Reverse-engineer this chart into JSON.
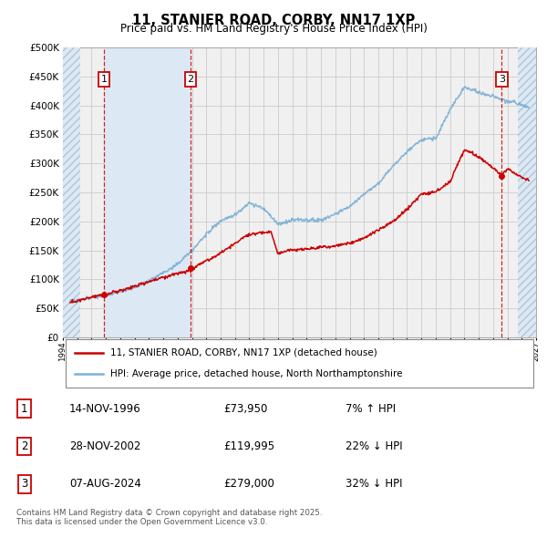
{
  "title": "11, STANIER ROAD, CORBY, NN17 1XP",
  "subtitle": "Price paid vs. HM Land Registry's House Price Index (HPI)",
  "legend_line1": "11, STANIER ROAD, CORBY, NN17 1XP (detached house)",
  "legend_line2": "HPI: Average price, detached house, North Northamptonshire",
  "footnote": "Contains HM Land Registry data © Crown copyright and database right 2025.\nThis data is licensed under the Open Government Licence v3.0.",
  "sale_events": [
    {
      "num": 1,
      "date": "14-NOV-1996",
      "price": 73950,
      "pct": "7%",
      "dir": "↑",
      "year": 1996.87
    },
    {
      "num": 2,
      "date": "28-NOV-2002",
      "price": 119995,
      "pct": "22%",
      "dir": "↓",
      "year": 2002.91
    },
    {
      "num": 3,
      "date": "07-AUG-2024",
      "price": 279000,
      "pct": "32%",
      "dir": "↓",
      "year": 2024.6
    }
  ],
  "ymin": 0,
  "ymax": 500000,
  "xmin": 1994,
  "xmax": 2027,
  "red_color": "#cc0000",
  "blue_color": "#7ab0d4",
  "shade_color": "#dce9f5",
  "hatch_color": "#c8d8e8",
  "grid_color": "#cccccc",
  "bg_color": "#f0f0f0"
}
